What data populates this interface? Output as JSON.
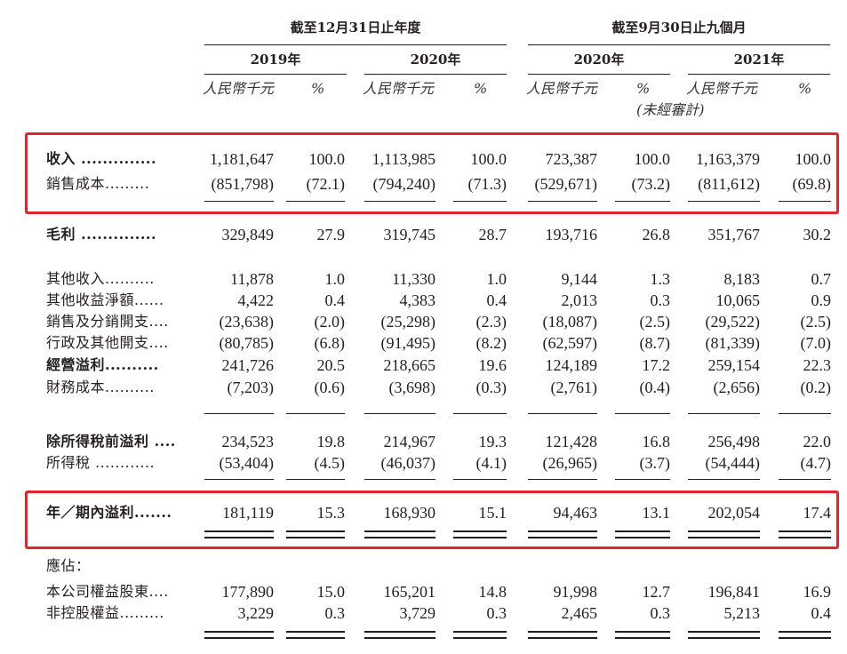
{
  "header": {
    "period_year": "截至12月31日止年度",
    "period_nine": "截至9月30日止九個月",
    "years": [
      "2019年",
      "2020年",
      "2020年",
      "2021年"
    ],
    "unit_rmb": "人民幣千元",
    "unit_pct": "%",
    "unaudited": "(未經審計)"
  },
  "rows": [
    {
      "label": "收入 ..............",
      "bold": true,
      "values": [
        "1,181,647",
        "100.0",
        "1,113,985",
        "100.0",
        "723,387",
        "100.0",
        "1,163,379",
        "100.0"
      ]
    },
    {
      "label": "銷售成本.........",
      "bold": false,
      "values": [
        "(851,798)",
        "(72.1)",
        "(794,240)",
        "(71.3)",
        "(529,671)",
        "(73.2)",
        "(811,612)",
        "(69.8)"
      ]
    },
    {
      "label": "毛利 ..............",
      "bold": true,
      "values": [
        "329,849",
        "27.9",
        "319,745",
        "28.7",
        "193,716",
        "26.8",
        "351,767",
        "30.2"
      ]
    },
    {
      "label": "其他收入..........",
      "bold": false,
      "values": [
        "11,878",
        "1.0",
        "11,330",
        "1.0",
        "9,144",
        "1.3",
        "8,183",
        "0.7"
      ]
    },
    {
      "label": "其他收益淨額......",
      "bold": false,
      "values": [
        "4,422",
        "0.4",
        "4,383",
        "0.4",
        "2,013",
        "0.3",
        "10,065",
        "0.9"
      ]
    },
    {
      "label": "銷售及分銷開支....",
      "bold": false,
      "values": [
        "(23,638)",
        "(2.0)",
        "(25,298)",
        "(2.3)",
        "(18,087)",
        "(2.5)",
        "(29,522)",
        "(2.5)"
      ]
    },
    {
      "label": "行政及其他開支....",
      "bold": false,
      "values": [
        "(80,785)",
        "(6.8)",
        "(91,495)",
        "(8.2)",
        "(62,597)",
        "(8.7)",
        "(81,339)",
        "(7.0)"
      ]
    },
    {
      "label": "經營溢利..........",
      "bold": true,
      "values": [
        "241,726",
        "20.5",
        "218,665",
        "19.6",
        "124,189",
        "17.2",
        "259,154",
        "22.3"
      ]
    },
    {
      "label": "財務成本..........",
      "bold": false,
      "values": [
        "(7,203)",
        "(0.6)",
        "(3,698)",
        "(0.3)",
        "(2,761)",
        "(0.4)",
        "(2,656)",
        "(0.2)"
      ]
    },
    {
      "label": "除所得稅前溢利 ....",
      "bold": true,
      "values": [
        "234,523",
        "19.8",
        "214,967",
        "19.3",
        "121,428",
        "16.8",
        "256,498",
        "22.0"
      ]
    },
    {
      "label": "所得稅 ............",
      "bold": false,
      "values": [
        "(53,404)",
        "(4.5)",
        "(46,037)",
        "(4.1)",
        "(26,965)",
        "(3.7)",
        "(54,444)",
        "(4.7)"
      ]
    },
    {
      "label": "年／期內溢利.......",
      "bold": true,
      "values": [
        "181,119",
        "15.3",
        "168,930",
        "15.1",
        "94,463",
        "13.1",
        "202,054",
        "17.4"
      ]
    },
    {
      "label": "應佔：",
      "bold": false,
      "values": [
        "",
        "",
        "",
        "",
        "",
        "",
        "",
        ""
      ]
    },
    {
      "label": "本公司權益股東....",
      "bold": false,
      "values": [
        "177,890",
        "15.0",
        "165,201",
        "14.8",
        "91,998",
        "12.7",
        "196,841",
        "16.9"
      ]
    },
    {
      "label": "非控股權益.........",
      "bold": false,
      "values": [
        "3,229",
        "0.3",
        "3,729",
        "0.3",
        "2,465",
        "0.3",
        "5,213",
        "0.4"
      ]
    }
  ]
}
